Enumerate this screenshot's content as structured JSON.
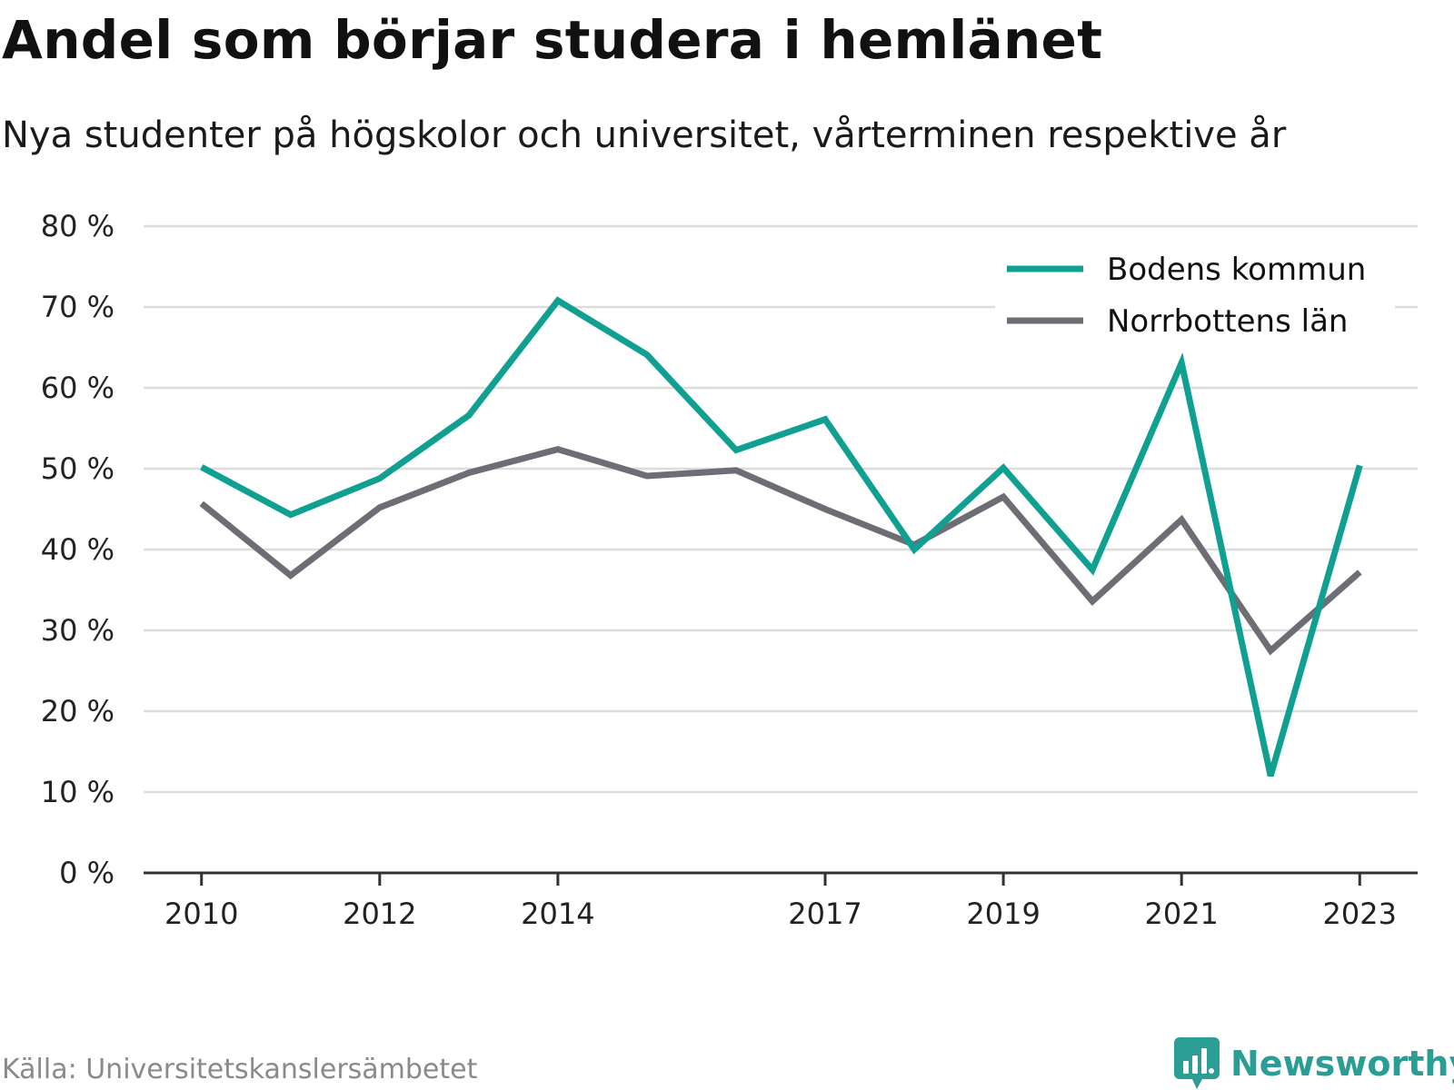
{
  "title": "Andel som börjar studera i hemlänet",
  "subtitle": "Nya studenter på högskolor och universitet, vårterminen respektive år",
  "source": "Källa: Universitetskanslersämbetet",
  "brand": {
    "name": "Newsworthy",
    "icon": "newsworthy-logo-icon",
    "color": "#2a9d94"
  },
  "chart_data": {
    "type": "line",
    "x": [
      2010,
      2011,
      2012,
      2013,
      2014,
      2015,
      2016,
      2017,
      2018,
      2019,
      2020,
      2021,
      2022,
      2023
    ],
    "x_tick_labels": [
      "2010",
      "2012",
      "2014",
      "2017",
      "2019",
      "2021",
      "2023"
    ],
    "y_tick_labels": [
      "0 %",
      "10 %",
      "20 %",
      "30 %",
      "40 %",
      "50 %",
      "60 %",
      "70 %",
      "80 %"
    ],
    "ylim": [
      0,
      80
    ],
    "xlim": [
      2009.35,
      2023.65
    ],
    "grid": true,
    "legend_position": "top-right",
    "unit": "%",
    "series": [
      {
        "name": "Bodens kommun",
        "color": "#0fa092",
        "values": [
          50.2,
          44.3,
          48.8,
          56.6,
          70.8,
          64.1,
          52.3,
          56.1,
          40.0,
          50.1,
          37.5,
          63.1,
          12.0,
          50.4
        ]
      },
      {
        "name": "Norrbottens län",
        "color": "#6e6d75",
        "values": [
          45.7,
          36.8,
          45.2,
          49.5,
          52.4,
          49.1,
          49.8,
          45.0,
          40.6,
          46.5,
          33.6,
          43.7,
          27.5,
          37.2
        ]
      }
    ]
  }
}
